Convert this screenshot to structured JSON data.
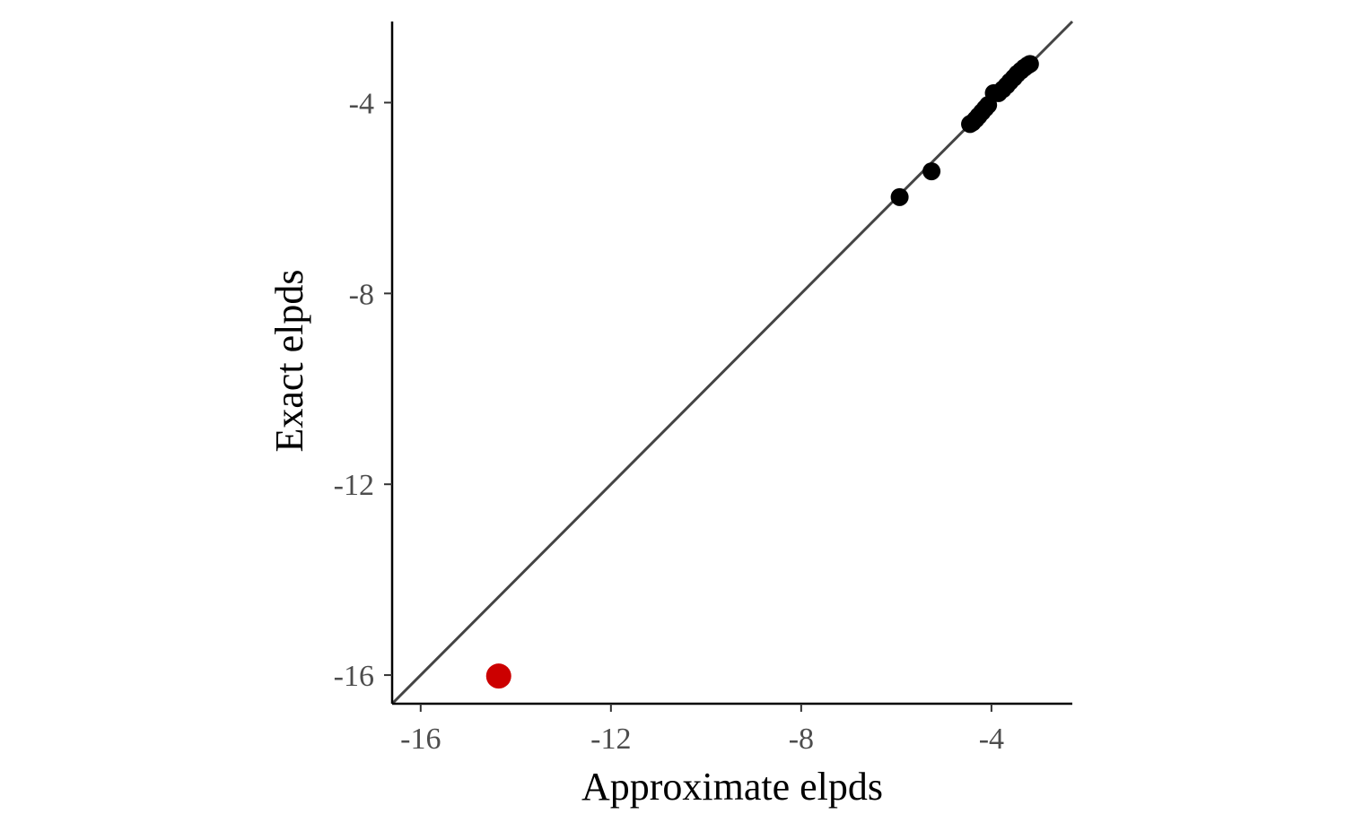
{
  "chart_data": {
    "type": "scatter",
    "title": "",
    "xlabel": "Approximate elpds",
    "ylabel": "Exact elpds",
    "xlim": [
      -16.6,
      -2.3
    ],
    "ylim": [
      -16.6,
      -2.3
    ],
    "x_ticks": [
      {
        "value": -16,
        "label": "-16"
      },
      {
        "value": -12,
        "label": "-12"
      },
      {
        "value": -8,
        "label": "-8"
      },
      {
        "value": -4,
        "label": "-4"
      }
    ],
    "y_ticks": [
      {
        "value": -16,
        "label": "-16"
      },
      {
        "value": -12,
        "label": "-12"
      },
      {
        "value": -8,
        "label": "-8"
      },
      {
        "value": -4,
        "label": "-4"
      }
    ],
    "reference_line": {
      "slope": 1,
      "intercept": 0,
      "color": "#444444"
    },
    "grid": false,
    "legend": "none",
    "point_color": "#000000",
    "highlight_color": "#cc0000",
    "points": [
      {
        "x": -5.93,
        "y": -5.98
      },
      {
        "x": -5.26,
        "y": -5.44
      },
      {
        "x": -4.45,
        "y": -4.45
      },
      {
        "x": -4.4,
        "y": -4.42
      },
      {
        "x": -4.33,
        "y": -4.35
      },
      {
        "x": -4.27,
        "y": -4.28
      },
      {
        "x": -4.2,
        "y": -4.2
      },
      {
        "x": -4.13,
        "y": -4.12
      },
      {
        "x": -4.07,
        "y": -4.05
      },
      {
        "x": -3.95,
        "y": -3.8
      },
      {
        "x": -3.85,
        "y": -3.8
      },
      {
        "x": -3.76,
        "y": -3.72
      },
      {
        "x": -3.68,
        "y": -3.64
      },
      {
        "x": -3.61,
        "y": -3.56
      },
      {
        "x": -3.53,
        "y": -3.48
      },
      {
        "x": -3.46,
        "y": -3.4
      },
      {
        "x": -3.38,
        "y": -3.33
      },
      {
        "x": -3.31,
        "y": -3.27
      },
      {
        "x": -3.24,
        "y": -3.22
      },
      {
        "x": -3.19,
        "y": -3.19
      }
    ],
    "highlight_points": [
      {
        "x": -14.36,
        "y": -16.02
      }
    ]
  }
}
